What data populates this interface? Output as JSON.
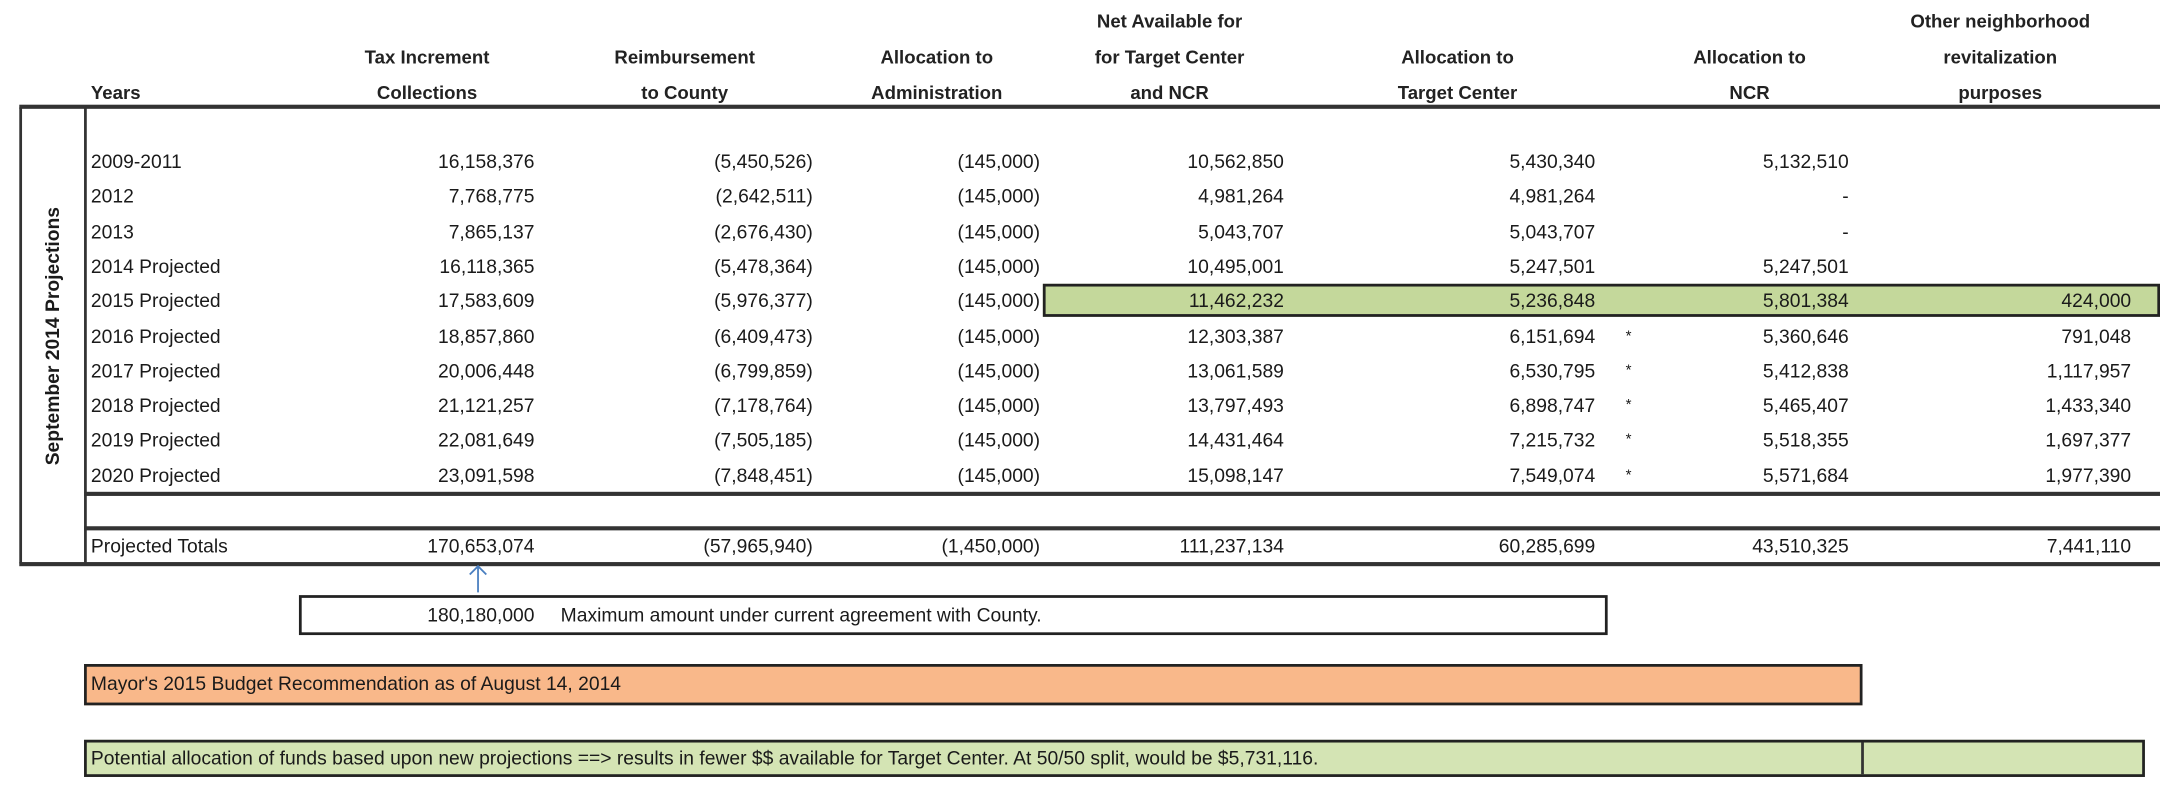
{
  "side_label": "September 2014 Projections",
  "headers": [
    [
      "Years"
    ],
    [
      "Tax Increment",
      "Collections"
    ],
    [
      "Reimbursement",
      "to County"
    ],
    [
      "Allocation to",
      "Administration"
    ],
    [
      "Net Available for",
      "for Target Center",
      "and NCR"
    ],
    [
      "Allocation to",
      "Target Center"
    ],
    [
      "Allocation to",
      "NCR"
    ],
    [
      "Other neighborhood",
      "revitalization",
      "purposes"
    ]
  ],
  "rows": [
    {
      "year": "2009-2011",
      "tax": "16,158,376",
      "reimb": "(5,450,526)",
      "admin": "(145,000)",
      "net": "10,562,850",
      "target": "5,430,340",
      "mark": "",
      "ncr": "5,132,510",
      "other": ""
    },
    {
      "year": "2012",
      "tax": "7,768,775",
      "reimb": "(2,642,511)",
      "admin": "(145,000)",
      "net": "4,981,264",
      "target": "4,981,264",
      "mark": "",
      "ncr": "-",
      "other": ""
    },
    {
      "year": "2013",
      "tax": "7,865,137",
      "reimb": "(2,676,430)",
      "admin": "(145,000)",
      "net": "5,043,707",
      "target": "5,043,707",
      "mark": "",
      "ncr": "-",
      "other": ""
    },
    {
      "year": "2014 Projected",
      "tax": "16,118,365",
      "reimb": "(5,478,364)",
      "admin": "(145,000)",
      "net": "10,495,001",
      "target": "5,247,501",
      "mark": "",
      "ncr": "5,247,501",
      "other": ""
    },
    {
      "year": "2015 Projected",
      "tax": "17,583,609",
      "reimb": "(5,976,377)",
      "admin": "(145,000)",
      "net": "11,462,232",
      "target": "5,236,848",
      "mark": "",
      "ncr": "5,801,384",
      "other": "424,000",
      "highlight": true
    },
    {
      "year": "2016 Projected",
      "tax": "18,857,860",
      "reimb": "(6,409,473)",
      "admin": "(145,000)",
      "net": "12,303,387",
      "target": "6,151,694",
      "mark": "*",
      "ncr": "5,360,646",
      "other": "791,048"
    },
    {
      "year": "2017 Projected",
      "tax": "20,006,448",
      "reimb": "(6,799,859)",
      "admin": "(145,000)",
      "net": "13,061,589",
      "target": "6,530,795",
      "mark": "*",
      "ncr": "5,412,838",
      "other": "1,117,957"
    },
    {
      "year": "2018 Projected",
      "tax": "21,121,257",
      "reimb": "(7,178,764)",
      "admin": "(145,000)",
      "net": "13,797,493",
      "target": "6,898,747",
      "mark": "*",
      "ncr": "5,465,407",
      "other": "1,433,340"
    },
    {
      "year": "2019 Projected",
      "tax": "22,081,649",
      "reimb": "(7,505,185)",
      "admin": "(145,000)",
      "net": "14,431,464",
      "target": "7,215,732",
      "mark": "*",
      "ncr": "5,518,355",
      "other": "1,697,377"
    },
    {
      "year": "2020 Projected",
      "tax": "23,091,598",
      "reimb": "(7,848,451)",
      "admin": "(145,000)",
      "net": "15,098,147",
      "target": "7,549,074",
      "mark": "*",
      "ncr": "5,571,684",
      "other": "1,977,390"
    }
  ],
  "totals": {
    "year": "Projected Totals",
    "tax": "170,653,074",
    "reimb": "(57,965,940)",
    "admin": "(1,450,000)",
    "net": "111,237,134",
    "target": "60,285,699",
    "mark": "",
    "ncr": "43,510,325",
    "other": "7,441,110"
  },
  "max_note": {
    "amount": "180,180,000",
    "text": "Maximum amount under current agreement with County."
  },
  "mayor_note": "Mayor's 2015 Budget Recommendation as of August 14, 2014",
  "potential_note": "Potential allocation of funds based upon new projections ==> results in fewer $$ available for Target Center. At 50/50 split, would be $5,731,116.",
  "colors": {
    "highlight_green": "#c4d89b",
    "orange": "#f9b88a",
    "light_green": "#d4e4b4",
    "arrow": "#4a7fc0"
  }
}
